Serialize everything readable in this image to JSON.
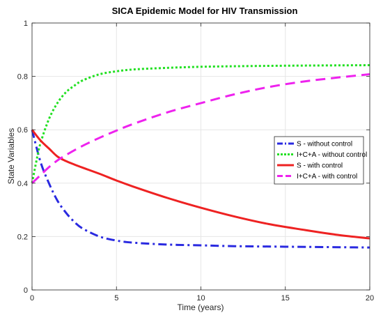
{
  "chart_data": {
    "type": "line",
    "title": "SICA Epidemic Model for HIV Transmission",
    "xlabel": "Time (years)",
    "ylabel": "State Variables",
    "xlim": [
      0,
      20
    ],
    "ylim": [
      0,
      1
    ],
    "x_ticks": [
      "0",
      "5",
      "10",
      "15",
      "20"
    ],
    "y_ticks": [
      "0",
      "0.2",
      "0.4",
      "0.6",
      "0.8",
      "1"
    ],
    "grid": true,
    "legend_position": "center-right",
    "series": [
      {
        "name": "S - without control",
        "color": "#2a2ae0",
        "style": "dashdot",
        "x": [
          0,
          0.5,
          1,
          1.5,
          2,
          2.5,
          3,
          4,
          5,
          6,
          8,
          10,
          12,
          15,
          20
        ],
        "y": [
          0.6,
          0.48,
          0.4,
          0.335,
          0.29,
          0.255,
          0.23,
          0.2,
          0.185,
          0.177,
          0.17,
          0.167,
          0.164,
          0.162,
          0.159
        ]
      },
      {
        "name": "I+C+A - without control",
        "color": "#22e022",
        "style": "dotted",
        "x": [
          0,
          0.25,
          0.5,
          1,
          1.5,
          2,
          2.5,
          3,
          4,
          5,
          6,
          8,
          10,
          12,
          15,
          20
        ],
        "y": [
          0.4,
          0.48,
          0.55,
          0.64,
          0.7,
          0.74,
          0.765,
          0.785,
          0.808,
          0.819,
          0.826,
          0.832,
          0.836,
          0.838,
          0.84,
          0.842
        ]
      },
      {
        "name": "S - with control",
        "color": "#ee2222",
        "style": "solid",
        "x": [
          0,
          0.5,
          1,
          1.5,
          2,
          2.5,
          3,
          4,
          5,
          6,
          8,
          10,
          12,
          14,
          16,
          18,
          20
        ],
        "y": [
          0.6,
          0.56,
          0.53,
          0.5,
          0.483,
          0.47,
          0.458,
          0.435,
          0.41,
          0.387,
          0.345,
          0.308,
          0.275,
          0.247,
          0.226,
          0.207,
          0.193
        ]
      },
      {
        "name": "I+C+A - with control",
        "color": "#ee22ee",
        "style": "dashed",
        "x": [
          0,
          0.5,
          1,
          1.5,
          2,
          3,
          4,
          5,
          6,
          8,
          10,
          12,
          14,
          16,
          18,
          20
        ],
        "y": [
          0.4,
          0.43,
          0.46,
          0.485,
          0.505,
          0.54,
          0.57,
          0.597,
          0.622,
          0.665,
          0.7,
          0.733,
          0.76,
          0.78,
          0.795,
          0.808
        ]
      }
    ]
  }
}
